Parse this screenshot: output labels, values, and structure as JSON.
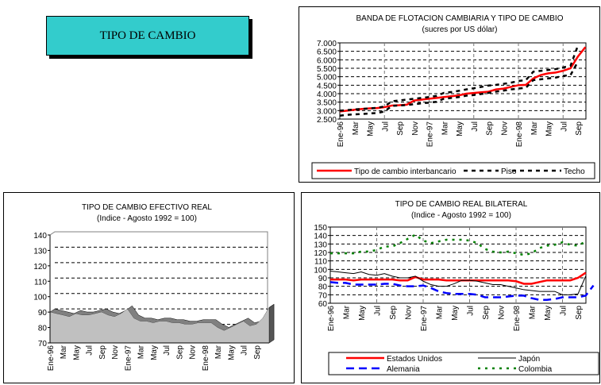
{
  "page_title": "TIPO DE CAMBIO",
  "chart_data": [
    {
      "id": "banda",
      "type": "line",
      "title": "BANDA DE FLOTACION CAMBIARIA Y TIPO DE CAMBIO",
      "subtitle": "(sucres por US dólar)",
      "ylim": [
        2500,
        7000
      ],
      "yticks": [
        "2.500",
        "3.000",
        "3.500",
        "4.000",
        "4.500",
        "5.000",
        "5.500",
        "6.000",
        "6.500",
        "7.000"
      ],
      "ytick_values": [
        2500,
        3000,
        3500,
        4000,
        4500,
        5000,
        5500,
        6000,
        6500,
        7000
      ],
      "xtick_labels": [
        "Ene-96",
        "Mar",
        "May",
        "Jul",
        "Sep",
        "Nov",
        "Ene-97",
        "Mar",
        "May",
        "Jul",
        "Sep",
        "Nov",
        "Ene-98",
        "Mar",
        "May",
        "Jul",
        "Sep"
      ],
      "grid": true,
      "legend_placement": "bottom",
      "series": [
        {
          "name": "Tipo de cambio interbancario",
          "color": "#ff0000",
          "style": "solid",
          "values": [
            2950,
            3000,
            3050,
            3100,
            3130,
            3150,
            3200,
            3300,
            3320,
            3350,
            3600,
            3650,
            3700,
            3750,
            3800,
            3850,
            3900,
            4000,
            4040,
            4080,
            4120,
            4250,
            4300,
            4400,
            4500,
            4520,
            4900,
            5100,
            5200,
            5250,
            5350,
            5500,
            6200,
            6750
          ]
        },
        {
          "name": "Piso",
          "color": "#000000",
          "style": "dash",
          "values": [
            2700,
            2750,
            2780,
            2800,
            2830,
            2860,
            2950,
            3280,
            3300,
            3330,
            3380,
            3430,
            3470,
            3520,
            3700,
            3750,
            3800,
            3880,
            3920,
            3980,
            4050,
            4120,
            4180,
            4250,
            4300,
            4350,
            4800,
            4850,
            4900,
            4950,
            5050,
            5100,
            5900
          ]
        },
        {
          "name": "Techo",
          "color": "#000000",
          "style": "dash",
          "values": [
            3000,
            3030,
            3070,
            3100,
            3130,
            3160,
            3250,
            3550,
            3600,
            3650,
            3700,
            3750,
            3800,
            3870,
            4050,
            4100,
            4170,
            4250,
            4320,
            4400,
            4480,
            4520,
            4580,
            4650,
            4750,
            4800,
            5300,
            5350,
            5400,
            5450,
            5550,
            5650,
            6850
          ]
        }
      ]
    },
    {
      "id": "efectivo",
      "type": "area",
      "title": "TIPO DE CAMBIO EFECTIVO REAL",
      "subtitle": "(Indice - Agosto 1992 = 100)",
      "ylim": [
        70,
        140
      ],
      "yticks": [
        "70",
        "80",
        "90",
        "100",
        "110",
        "120",
        "130",
        "140"
      ],
      "ytick_values": [
        70,
        80,
        90,
        100,
        110,
        120,
        130,
        140
      ],
      "xtick_labels": [
        "Ene-96",
        "Mar",
        "May",
        "Jul",
        "Sep",
        "Nov",
        "Ene-97",
        "Mar",
        "May",
        "Jul",
        "Sep",
        "Nov",
        "Ene-98",
        "Mar",
        "May",
        "Jul",
        "Sep"
      ],
      "grid": true,
      "series": [
        {
          "name": "Tipo de cambio efectivo real",
          "color": "#c0c0c0",
          "values": [
            90,
            89,
            88,
            87,
            89,
            88,
            88,
            89,
            90,
            88,
            87,
            89,
            92,
            86,
            84,
            84,
            83,
            84,
            84,
            83,
            83,
            82,
            82,
            83,
            83,
            83,
            80,
            78,
            80,
            82,
            84,
            81,
            82,
            86,
            93
          ]
        }
      ]
    },
    {
      "id": "bilateral",
      "type": "line",
      "title": "TIPO DE CAMBIO REAL BILATERAL",
      "subtitle": "(Indice - Agosto 1992 = 100)",
      "ylim": [
        60,
        150
      ],
      "yticks": [
        "60",
        "70",
        "80",
        "90",
        "100",
        "110",
        "120",
        "130",
        "140",
        "150"
      ],
      "ytick_values": [
        60,
        70,
        80,
        90,
        100,
        110,
        120,
        130,
        140,
        150
      ],
      "xtick_labels": [
        "Ene-96",
        "Mar",
        "May",
        "Jul",
        "Sep",
        "Nov",
        "Ene-97",
        "Mar",
        "May",
        "Jul",
        "Sep",
        "Nov",
        "Ene-98",
        "Mar",
        "May",
        "Jul",
        "Sep"
      ],
      "grid": true,
      "legend_placement": "bottom",
      "series": [
        {
          "name": "Estados Unidos",
          "color": "#ff0000",
          "style": "solid",
          "values": [
            88,
            88,
            88,
            87,
            88,
            88,
            88,
            88,
            88,
            87,
            87,
            91,
            88,
            88,
            88,
            87,
            87,
            87,
            87,
            87,
            87,
            87,
            87,
            87,
            86,
            83,
            83,
            85,
            87,
            87,
            87,
            87,
            90,
            96
          ]
        },
        {
          "name": "Japón",
          "color": "#000000",
          "style": "thin",
          "values": [
            98,
            97,
            96,
            95,
            97,
            94,
            93,
            95,
            92,
            90,
            90,
            92,
            86,
            82,
            80,
            80,
            83,
            87,
            87,
            86,
            84,
            82,
            82,
            80,
            78,
            76,
            75,
            74,
            74,
            74,
            70,
            70,
            71,
            92
          ]
        },
        {
          "name": "Alemania",
          "color": "#0000ff",
          "style": "dash",
          "values": [
            85,
            84,
            84,
            82,
            82,
            82,
            82,
            83,
            83,
            81,
            80,
            80,
            81,
            78,
            74,
            72,
            71,
            71,
            71,
            70,
            67,
            67,
            67,
            68,
            69,
            69,
            66,
            64,
            64,
            65,
            67,
            67,
            67,
            69,
            81
          ]
        },
        {
          "name": "Colombia",
          "color": "#008000",
          "style": "dot",
          "values": [
            119,
            119,
            119,
            119,
            121,
            121,
            123,
            127,
            127,
            131,
            136,
            141,
            134,
            131,
            133,
            135,
            135,
            135,
            134,
            131,
            124,
            121,
            120,
            121,
            119,
            117,
            119,
            125,
            128,
            129,
            132,
            129,
            128,
            133
          ]
        }
      ]
    }
  ]
}
